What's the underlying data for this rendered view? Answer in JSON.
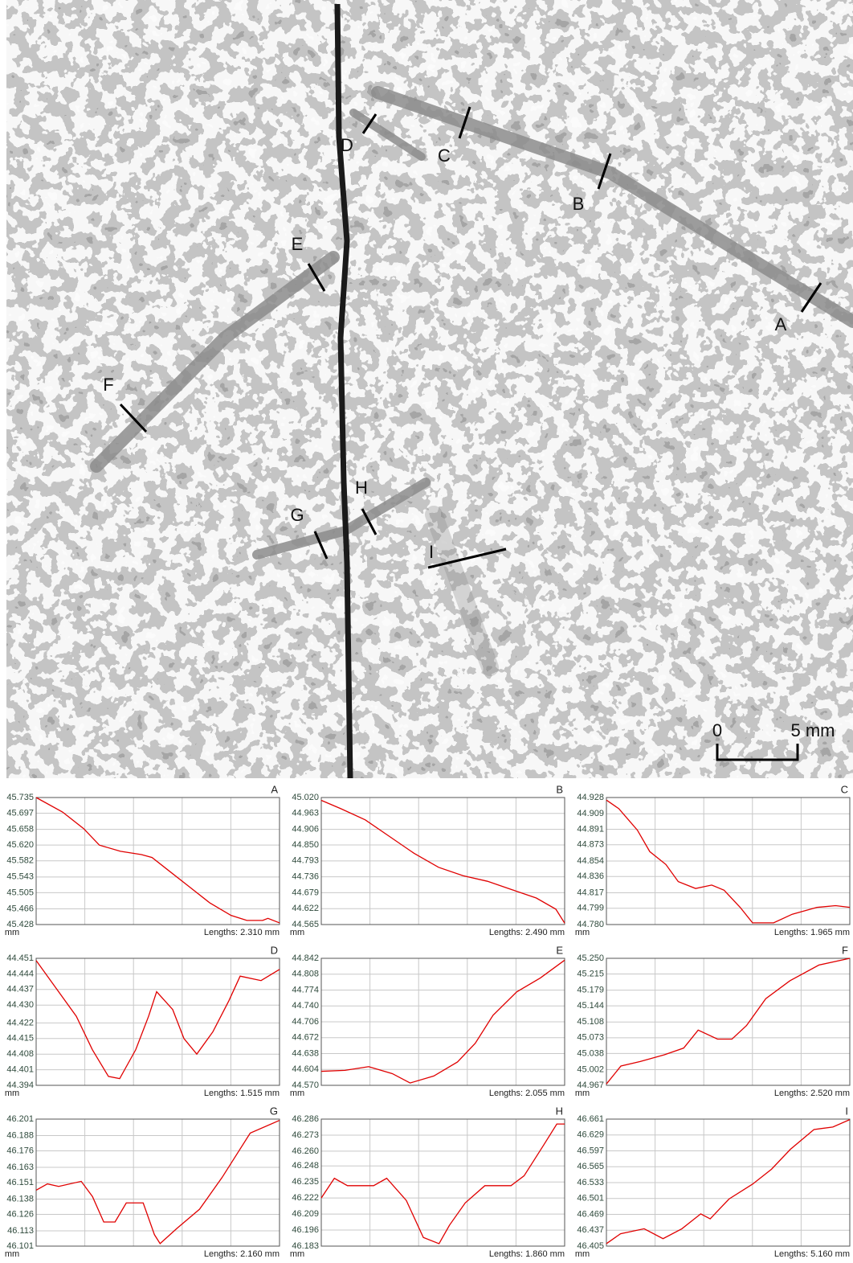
{
  "image": {
    "labels": [
      "A",
      "B",
      "C",
      "D",
      "E",
      "F",
      "G",
      "H",
      "I"
    ],
    "scale_bar": [
      "0",
      "5 mm"
    ]
  },
  "chart_data": [
    {
      "type": "line",
      "title": "A",
      "y_label": "mm",
      "x_label": "Lengths: 2.310 mm",
      "color": "#e00000",
      "x": [
        0,
        0.25,
        0.45,
        0.6,
        0.8,
        1.0,
        1.1,
        1.25,
        1.45,
        1.65,
        1.85,
        2.0,
        2.15,
        2.2,
        2.31
      ],
      "values": [
        45.735,
        45.7,
        45.66,
        45.62,
        45.605,
        45.597,
        45.59,
        45.56,
        45.52,
        45.48,
        45.45,
        45.438,
        45.438,
        45.443,
        45.432
      ],
      "xlim": [
        0,
        2.31
      ],
      "ylim": [
        45.428,
        45.735
      ],
      "yticks": [
        45.428,
        45.466,
        45.505,
        45.543,
        45.582,
        {
          "value": 45.62,
          "label": "45.620"
        },
        45.658,
        45.697,
        45.735
      ]
    },
    {
      "type": "line",
      "title": "B",
      "y_label": "mm",
      "x_label": "Lengths: 2.490 mm",
      "color": "#e00000",
      "x": [
        0,
        0.2,
        0.45,
        0.7,
        0.95,
        1.2,
        1.45,
        1.7,
        1.95,
        2.2,
        2.4,
        2.49
      ],
      "values": [
        45.01,
        44.98,
        44.94,
        44.88,
        44.82,
        44.77,
        44.74,
        44.72,
        44.69,
        44.66,
        44.62,
        44.57
      ],
      "xlim": [
        0,
        2.49
      ],
      "ylim": [
        44.565,
        45.02
      ],
      "yticks": [
        44.565,
        44.622,
        44.679,
        44.736,
        44.793,
        {
          "value": 44.85,
          "label": "44.850"
        },
        44.906,
        44.963,
        {
          "value": 45.02,
          "label": "45.020"
        }
      ]
    },
    {
      "type": "line",
      "title": "C",
      "y_label": "mm",
      "x_label": "Lengths: 1.965 mm",
      "color": "#e00000",
      "x": [
        0,
        0.1,
        0.25,
        0.35,
        0.48,
        0.58,
        0.72,
        0.85,
        0.95,
        1.08,
        1.18,
        1.35,
        1.5,
        1.7,
        1.85,
        1.965
      ],
      "values": [
        44.925,
        44.915,
        44.89,
        44.865,
        44.85,
        44.83,
        44.822,
        44.826,
        44.82,
        44.8,
        44.782,
        44.782,
        44.792,
        44.8,
        44.802,
        44.8
      ],
      "xlim": [
        0,
        1.965
      ],
      "ylim": [
        44.78,
        44.928
      ],
      "yticks": [
        {
          "value": 44.78,
          "label": "44.780"
        },
        44.799,
        44.817,
        44.836,
        44.854,
        44.873,
        44.891,
        44.909,
        44.928
      ]
    },
    {
      "type": "line",
      "title": "D",
      "y_label": "mm",
      "x_label": "Lengths: 1.515 mm",
      "color": "#e00000",
      "x": [
        0,
        0.1,
        0.25,
        0.35,
        0.45,
        0.52,
        0.62,
        0.7,
        0.75,
        0.85,
        0.92,
        1.0,
        1.1,
        1.2,
        1.27,
        1.4,
        1.515
      ],
      "values": [
        44.45,
        44.44,
        44.425,
        44.41,
        44.398,
        44.397,
        44.41,
        44.425,
        44.436,
        44.428,
        44.415,
        44.408,
        44.418,
        44.432,
        44.443,
        44.441,
        44.446
      ],
      "xlim": [
        0,
        1.515
      ],
      "ylim": [
        44.394,
        44.451
      ],
      "yticks": [
        44.394,
        44.401,
        44.408,
        44.415,
        44.422,
        {
          "value": 44.43,
          "label": "44.430"
        },
        44.437,
        44.444,
        44.451
      ]
    },
    {
      "type": "line",
      "title": "E",
      "y_label": "mm",
      "x_label": "Lengths: 2.055 mm",
      "color": "#e00000",
      "x": [
        0,
        0.2,
        0.4,
        0.6,
        0.75,
        0.95,
        1.15,
        1.3,
        1.45,
        1.65,
        1.85,
        2.055
      ],
      "values": [
        44.6,
        44.602,
        44.61,
        44.595,
        44.575,
        44.59,
        44.62,
        44.66,
        44.72,
        44.77,
        44.8,
        44.838
      ],
      "xlim": [
        0,
        2.055
      ],
      "ylim": [
        44.57,
        44.842
      ],
      "yticks": [
        {
          "value": 44.57,
          "label": "44.570"
        },
        44.604,
        44.638,
        44.672,
        44.706,
        {
          "value": 44.74,
          "label": "44.740"
        },
        44.774,
        44.808,
        44.842
      ]
    },
    {
      "type": "line",
      "title": "F",
      "y_label": "mm",
      "x_label": "Lengths: 2.520 mm",
      "color": "#e00000",
      "x": [
        0,
        0.15,
        0.35,
        0.6,
        0.8,
        0.95,
        1.15,
        1.3,
        1.45,
        1.65,
        1.9,
        2.2,
        2.52
      ],
      "values": [
        44.97,
        45.01,
        45.02,
        45.035,
        45.05,
        45.09,
        45.07,
        45.07,
        45.1,
        45.16,
        45.2,
        45.235,
        45.25
      ],
      "xlim": [
        0,
        2.52
      ],
      "ylim": [
        44.967,
        45.25
      ],
      "yticks": [
        44.967,
        45.002,
        45.038,
        45.073,
        45.108,
        45.144,
        45.179,
        45.215,
        {
          "value": 45.25,
          "label": "45.250"
        }
      ]
    },
    {
      "type": "line",
      "title": "G",
      "y_label": "mm",
      "x_label": "Lengths: 2.160 mm",
      "color": "#e00000",
      "x": [
        0,
        0.1,
        0.2,
        0.4,
        0.5,
        0.6,
        0.7,
        0.8,
        0.95,
        1.05,
        1.1,
        1.25,
        1.45,
        1.65,
        1.9,
        2.16
      ],
      "values": [
        46.145,
        46.15,
        46.148,
        46.152,
        46.14,
        46.12,
        46.12,
        46.135,
        46.135,
        46.11,
        46.103,
        46.115,
        46.13,
        46.155,
        46.19,
        46.2
      ],
      "xlim": [
        0,
        2.16
      ],
      "ylim": [
        46.101,
        46.201
      ],
      "yticks": [
        46.101,
        46.113,
        46.126,
        46.138,
        46.151,
        46.163,
        46.176,
        46.188,
        46.201
      ]
    },
    {
      "type": "line",
      "title": "H",
      "y_label": "mm",
      "x_label": "Lengths: 1.860 mm",
      "color": "#e00000",
      "x": [
        0,
        0.1,
        0.2,
        0.4,
        0.5,
        0.65,
        0.78,
        0.9,
        0.98,
        1.1,
        1.25,
        1.45,
        1.55,
        1.7,
        1.8,
        1.86
      ],
      "values": [
        46.222,
        46.238,
        46.232,
        46.232,
        46.238,
        46.22,
        46.19,
        46.185,
        46.2,
        46.218,
        46.232,
        46.232,
        46.24,
        46.265,
        46.282,
        46.282
      ],
      "xlim": [
        0,
        1.86
      ],
      "ylim": [
        46.183,
        46.286
      ],
      "yticks": [
        46.183,
        46.196,
        46.209,
        46.222,
        46.235,
        46.248,
        {
          "value": 46.26,
          "label": "46.260"
        },
        46.273,
        46.286
      ]
    },
    {
      "type": "line",
      "title": "I",
      "y_label": "mm",
      "x_label": "Lengths: 5.160 mm",
      "color": "#e00000",
      "x": [
        0,
        0.3,
        0.8,
        1.2,
        1.6,
        2.0,
        2.2,
        2.6,
        3.1,
        3.5,
        3.9,
        4.4,
        4.8,
        5.16
      ],
      "values": [
        46.41,
        46.43,
        46.44,
        46.42,
        46.44,
        46.47,
        46.46,
        46.5,
        46.53,
        46.56,
        46.6,
        46.64,
        46.645,
        46.66
      ],
      "xlim": [
        0,
        5.16
      ],
      "ylim": [
        46.405,
        46.661
      ],
      "yticks": [
        46.405,
        46.437,
        46.469,
        46.501,
        46.533,
        46.565,
        46.597,
        46.629,
        46.661
      ]
    }
  ]
}
